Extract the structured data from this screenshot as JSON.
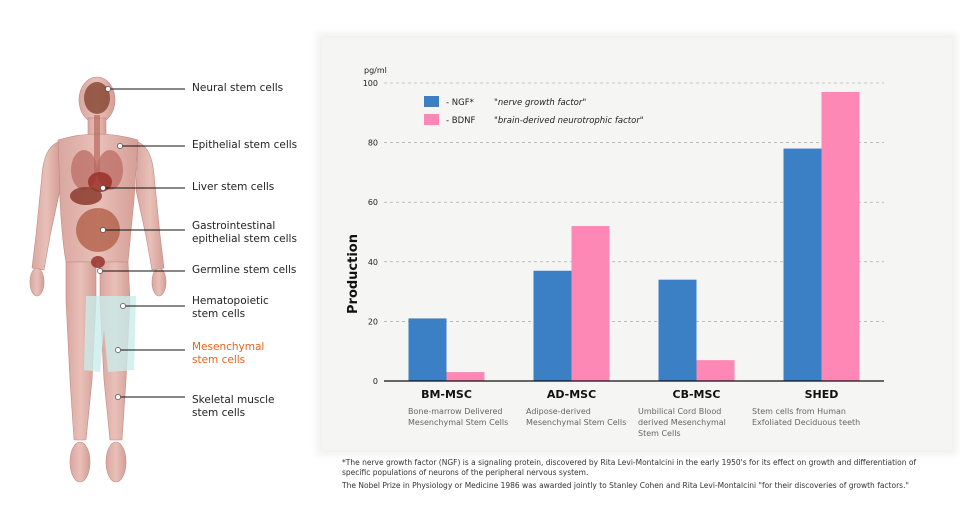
{
  "callouts": [
    {
      "label": "Neural stem cells",
      "highlight": false
    },
    {
      "label": "Epithelial stem cells",
      "highlight": false
    },
    {
      "label": "Liver stem cells",
      "highlight": false
    },
    {
      "label": "Gastrointestinal\nepithelial stem cells",
      "highlight": false
    },
    {
      "label": "Germline stem cells",
      "highlight": false
    },
    {
      "label": "Hematopoietic\nstem cells",
      "highlight": false
    },
    {
      "label": "Mesenchymal\nstem cells",
      "highlight": true
    },
    {
      "label": "Skeletal muscle\nstem cells",
      "highlight": false
    }
  ],
  "chart_data": {
    "type": "bar",
    "unit_label": "pg/ml",
    "ylabel": "Production",
    "ylim": [
      0,
      100
    ],
    "yticks": [
      0,
      20,
      40,
      60,
      80,
      100
    ],
    "grid": true,
    "legend_position": "top-left",
    "categories": [
      "BM-MSC",
      "AD-MSC",
      "CB-MSC",
      "SHED"
    ],
    "category_descriptions": [
      "Bone-marrow Delivered\nMesenchymal Stem Cells",
      "Adipose-derived\nMesenchymal Stem Cells",
      "Umbilical Cord Blood\nderived Mesenchymal\nStem Cells",
      "Stem cells from Human\nExfoliated Deciduous teeth"
    ],
    "series": [
      {
        "name": "- NGF*",
        "description": "\"nerve growth factor\"",
        "color": "#3b7fc4",
        "values": [
          21,
          37,
          34,
          78
        ]
      },
      {
        "name": "- BDNF",
        "description": "\"brain-derived neurotrophic factor\"",
        "color": "#fd88b6",
        "values": [
          3,
          52,
          7,
          97
        ]
      }
    ]
  },
  "footnote": {
    "line1": "*The nerve growth factor (NGF) is a signaling protein, discovered by Rita Levi-Montalcini in the early 1950's for its effect on growth and differentiation of specific populations of neurons of the peripheral nervous system.",
    "line2": "The Nobel Prize in Physiology or Medicine 1986 was awarded jointly to Stanley Cohen and Rita Levi-Montalcini \"for their discoveries of growth factors.\""
  }
}
